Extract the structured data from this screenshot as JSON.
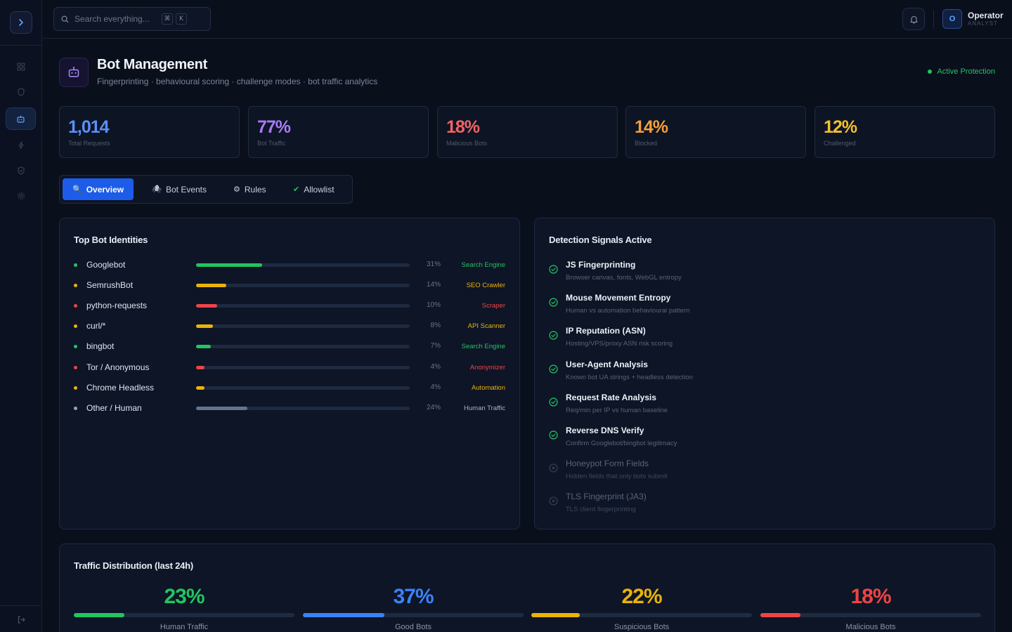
{
  "topbar": {
    "search_placeholder": "Search everything...",
    "kbd_cmd": "⌘",
    "kbd_k": "K",
    "user_initial": "O",
    "user_name": "Operator",
    "user_role": "ANALYST"
  },
  "header": {
    "title": "Bot Management",
    "subtitle": "Fingerprinting · behavioural scoring · challenge modes · bot traffic analytics",
    "status": "Active Protection"
  },
  "stats": [
    {
      "value": "1,014",
      "label": "Total Requests",
      "color": "#5b8ff9"
    },
    {
      "value": "77%",
      "label": "Bot Traffic",
      "color": "#a77bf3"
    },
    {
      "value": "18%",
      "label": "Malicious Bots",
      "color": "#f26363"
    },
    {
      "value": "14%",
      "label": "Blocked",
      "color": "#f59e3a"
    },
    {
      "value": "12%",
      "label": "Challenged",
      "color": "#f5c02a"
    }
  ],
  "tabs": [
    {
      "icon": "🔍",
      "label": "Overview"
    },
    {
      "icon": "🕷",
      "label": "Bot Events"
    },
    {
      "icon": "⚙",
      "label": "Rules"
    },
    {
      "icon": "✔",
      "label": "Allowlist"
    }
  ],
  "top_bots": {
    "title": "Top Bot Identities",
    "rows": [
      {
        "name": "Googlebot",
        "pct": "31%",
        "fraction": 0.31,
        "category": "Search Engine",
        "color": "#22c55e"
      },
      {
        "name": "SemrushBot",
        "pct": "14%",
        "fraction": 0.14,
        "category": "SEO Crawler",
        "color": "#eab308"
      },
      {
        "name": "python-requests",
        "pct": "10%",
        "fraction": 0.1,
        "category": "Scraper",
        "color": "#ef4444"
      },
      {
        "name": "curl/*",
        "pct": "8%",
        "fraction": 0.08,
        "category": "API Scanner",
        "color": "#eab308"
      },
      {
        "name": "bingbot",
        "pct": "7%",
        "fraction": 0.07,
        "category": "Search Engine",
        "color": "#22c55e"
      },
      {
        "name": "Tor / Anonymous",
        "pct": "4%",
        "fraction": 0.04,
        "category": "Anonymizer",
        "color": "#ef4444"
      },
      {
        "name": "Chrome Headless",
        "pct": "4%",
        "fraction": 0.04,
        "category": "Automation",
        "color": "#eab308"
      },
      {
        "name": "Other / Human",
        "pct": "24%",
        "fraction": 0.24,
        "category": "Human Traffic",
        "color": "#64748b",
        "cat_color": "#aab3c2",
        "dot_color": "#9aa3b2"
      }
    ]
  },
  "signals": {
    "title": "Detection Signals Active",
    "rows": [
      {
        "name": "JS Fingerprinting",
        "desc": "Browser canvas, fonts, WebGL entropy",
        "active": true
      },
      {
        "name": "Mouse Movement Entropy",
        "desc": "Human vs automation behavioural pattern",
        "active": true
      },
      {
        "name": "IP Reputation (ASN)",
        "desc": "Hosting/VPS/proxy ASN risk scoring",
        "active": true
      },
      {
        "name": "User-Agent Analysis",
        "desc": "Known bot UA strings + headless detection",
        "active": true
      },
      {
        "name": "Request Rate Analysis",
        "desc": "Req/min per IP vs human baseline",
        "active": true
      },
      {
        "name": "Reverse DNS Verify",
        "desc": "Confirm Googlebot/bingbot legitimacy",
        "active": true
      },
      {
        "name": "Honeypot Form Fields",
        "desc": "Hidden fields that only bots submit",
        "active": false
      },
      {
        "name": "TLS Fingerprint (JA3)",
        "desc": "TLS client fingerprinting",
        "active": false
      }
    ]
  },
  "distribution": {
    "title": "Traffic Distribution (last 24h)",
    "items": [
      {
        "value": "23%",
        "fraction": 0.23,
        "label": "Human Traffic",
        "color": "#22c55e"
      },
      {
        "value": "37%",
        "fraction": 0.37,
        "label": "Good Bots",
        "color": "#3b82f6"
      },
      {
        "value": "22%",
        "fraction": 0.22,
        "label": "Suspicious Bots",
        "color": "#eab308"
      },
      {
        "value": "18%",
        "fraction": 0.18,
        "label": "Malicious Bots",
        "color": "#ef4444"
      }
    ]
  },
  "colors": {
    "accent": "#1d5ce8",
    "success": "#22c55e",
    "background": "#0a0f1c"
  }
}
